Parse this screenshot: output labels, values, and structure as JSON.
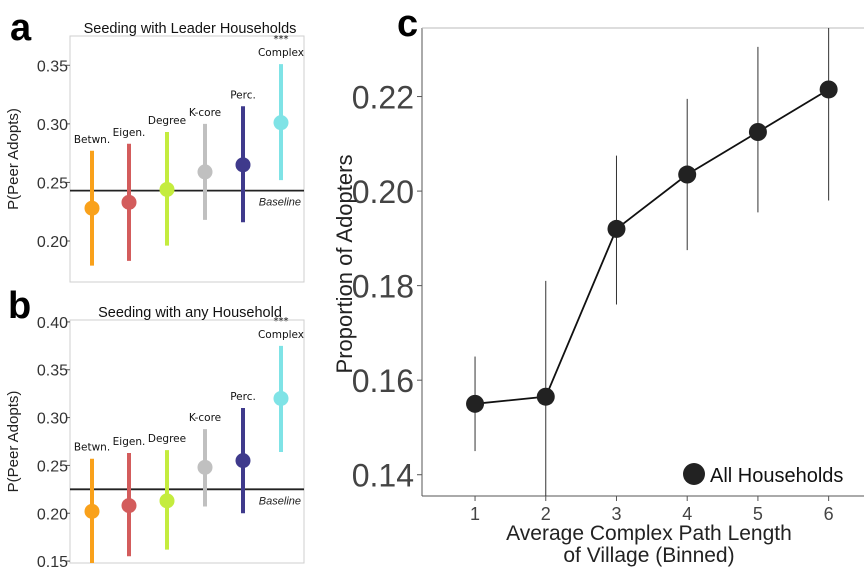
{
  "chart_data": [
    {
      "panel": "a",
      "type": "scatter",
      "title": "Seeding with Leader Households",
      "ylabel": "P(Peer Adopts)",
      "ylim": [
        0.165,
        0.375
      ],
      "yticks": [
        0.2,
        0.25,
        0.3,
        0.35
      ],
      "ytick_labels": [
        "0.20",
        "0.25",
        "0.30",
        "0.35"
      ],
      "baseline": 0.243,
      "baseline_label": "Baseline",
      "points": [
        {
          "label": "Betwn.",
          "value": 0.228,
          "low": 0.179,
          "high": 0.277,
          "color": "#f9a11b"
        },
        {
          "label": "Eigen.",
          "value": 0.233,
          "low": 0.183,
          "high": 0.283,
          "color": "#d35c5c"
        },
        {
          "label": "Degree",
          "value": 0.244,
          "low": 0.196,
          "high": 0.293,
          "color": "#c4ec3e"
        },
        {
          "label": "K-core",
          "value": 0.259,
          "low": 0.218,
          "high": 0.3,
          "color": "#c0c0c0"
        },
        {
          "label": "Perc.",
          "value": 0.265,
          "low": 0.216,
          "high": 0.315,
          "color": "#3f3a8c"
        },
        {
          "label": "Complex",
          "value": 0.301,
          "low": 0.252,
          "high": 0.351,
          "color": "#7fe3e6",
          "sig": "***"
        }
      ]
    },
    {
      "panel": "b",
      "type": "scatter",
      "title": "Seeding with any Household",
      "ylabel": "P(Peer Adopts)",
      "ylim": [
        0.148,
        0.402
      ],
      "yticks": [
        0.15,
        0.2,
        0.25,
        0.3,
        0.35,
        0.4
      ],
      "ytick_labels": [
        "0.15",
        "0.20",
        "0.25",
        "0.30",
        "0.35",
        "0.40"
      ],
      "baseline": 0.225,
      "baseline_label": "Baseline",
      "points": [
        {
          "label": "Betwn.",
          "value": 0.202,
          "low": 0.148,
          "high": 0.257,
          "color": "#f9a11b"
        },
        {
          "label": "Eigen.",
          "value": 0.208,
          "low": 0.155,
          "high": 0.263,
          "color": "#d35c5c"
        },
        {
          "label": "Degree",
          "value": 0.213,
          "low": 0.162,
          "high": 0.266,
          "color": "#c4ec3e"
        },
        {
          "label": "K-core",
          "value": 0.248,
          "low": 0.207,
          "high": 0.288,
          "color": "#c0c0c0"
        },
        {
          "label": "Perc.",
          "value": 0.255,
          "low": 0.2,
          "high": 0.31,
          "color": "#3f3a8c"
        },
        {
          "label": "Complex",
          "value": 0.32,
          "low": 0.264,
          "high": 0.375,
          "color": "#7fe3e6",
          "sig": "***"
        }
      ]
    },
    {
      "panel": "c",
      "type": "line",
      "xlabel": "Average Complex Path Length\nof Village (Binned)",
      "ylabel": "Proportion of Adopters",
      "xlim": [
        0.25,
        6.5
      ],
      "ylim": [
        0.1355,
        0.2345
      ],
      "xticks": [
        1,
        2,
        3,
        4,
        5,
        6
      ],
      "xtick_labels": [
        "1",
        "2",
        "3",
        "4",
        "5",
        "6"
      ],
      "yticks": [
        0.14,
        0.16,
        0.18,
        0.2,
        0.22
      ],
      "ytick_labels": [
        "0.14",
        "0.16",
        "0.18",
        "0.20",
        "0.22"
      ],
      "series": [
        {
          "name": "All Households",
          "color": "#222222",
          "x": [
            1,
            2,
            3,
            4,
            5,
            6
          ],
          "y": [
            0.155,
            0.1565,
            0.192,
            0.2035,
            0.2125,
            0.2215
          ],
          "low": [
            0.145,
            0.1355,
            0.176,
            0.1875,
            0.1955,
            0.198
          ],
          "high": [
            0.165,
            0.181,
            0.2075,
            0.2195,
            0.2305,
            0.2345
          ]
        }
      ],
      "legend_position": "bottom-right"
    }
  ],
  "panel_letters": {
    "a": "a",
    "b": "b",
    "c": "c"
  }
}
